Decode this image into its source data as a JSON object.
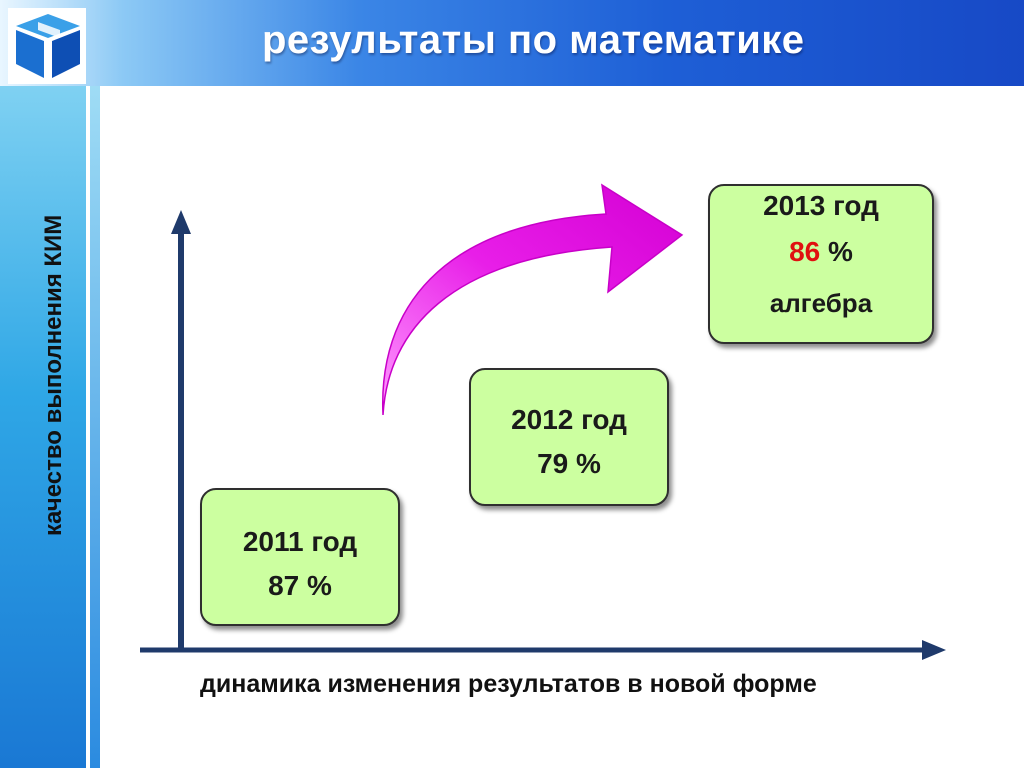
{
  "header": {
    "title": "результаты по математике"
  },
  "axes": {
    "y_label": "качество выполнения КИМ",
    "x_label": "динамика изменения результатов в новой форме"
  },
  "results": [
    {
      "year_label": "2011 год",
      "percent_label": "87 %"
    },
    {
      "year_label": "2012 год",
      "percent_label": "79 %"
    },
    {
      "year_label": "2013 год",
      "percent_value": "86",
      "percent_unit": " %",
      "subject": "алгебра"
    }
  ],
  "colors": {
    "box_fill": "#ccffa0",
    "arrow": "#e81ee8",
    "axis": "#1f3a6b",
    "highlight": "#e01010"
  },
  "icons": {
    "logo": "cube-logo-icon"
  }
}
